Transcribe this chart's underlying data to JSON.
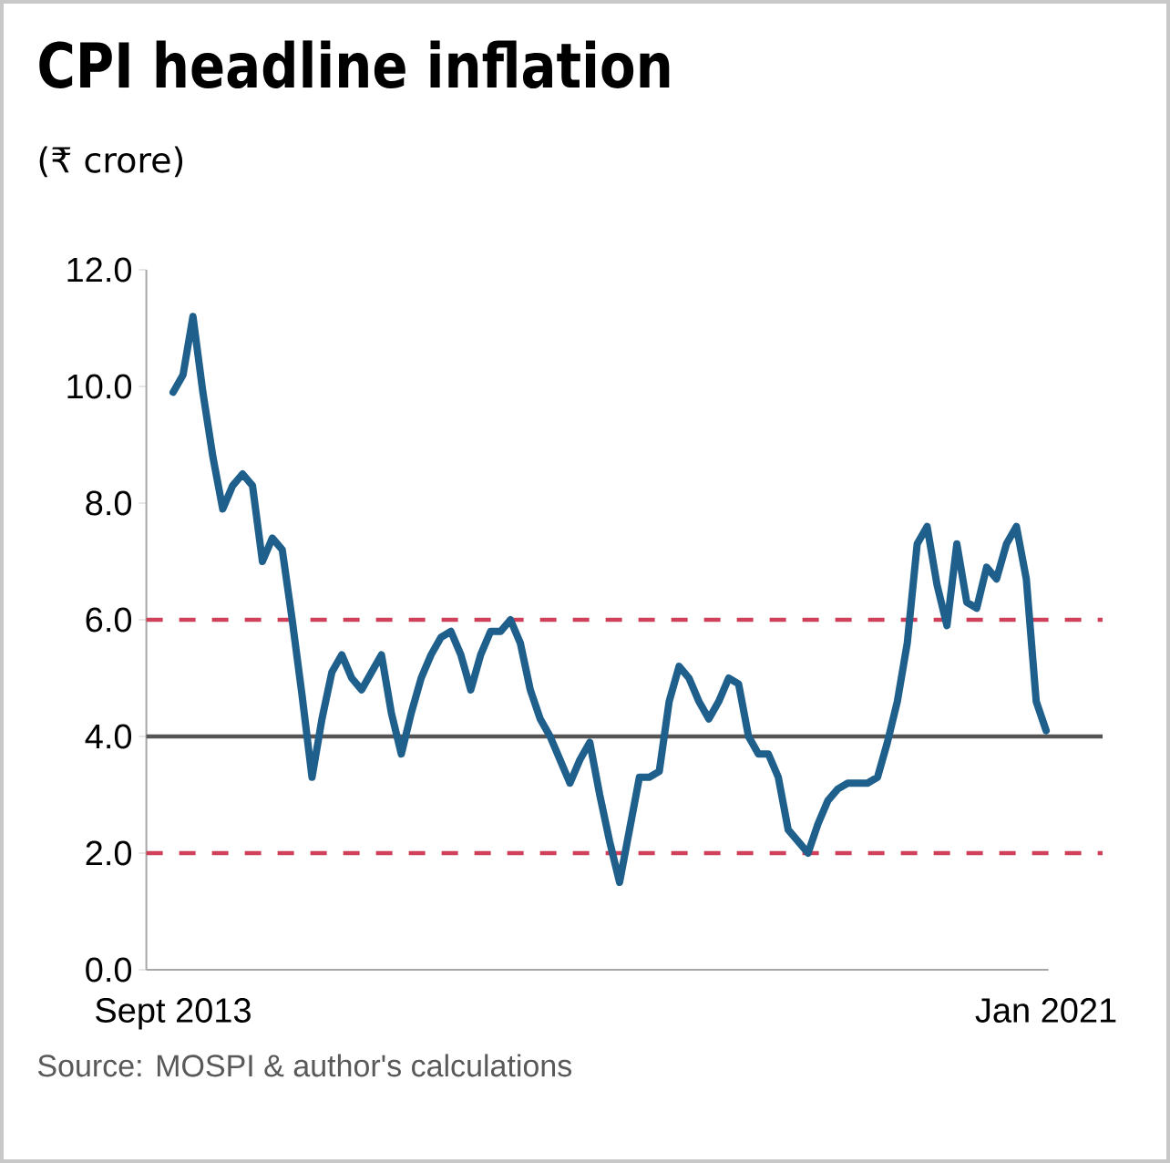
{
  "chart_data": {
    "type": "line",
    "title": "CPI headline inflation",
    "subtitle": "(₹ crore)",
    "annotations": [
      "Source: MOSPI & author's calculations"
    ],
    "x": [
      "2013-09",
      "2013-10",
      "2013-11",
      "2013-12",
      "2014-01",
      "2014-02",
      "2014-03",
      "2014-04",
      "2014-05",
      "2014-06",
      "2014-07",
      "2014-08",
      "2014-09",
      "2014-10",
      "2014-11",
      "2014-12",
      "2015-01",
      "2015-02",
      "2015-03",
      "2015-04",
      "2015-05",
      "2015-06",
      "2015-07",
      "2015-08",
      "2015-09",
      "2015-10",
      "2015-11",
      "2015-12",
      "2016-01",
      "2016-02",
      "2016-03",
      "2016-04",
      "2016-05",
      "2016-06",
      "2016-07",
      "2016-08",
      "2016-09",
      "2016-10",
      "2016-11",
      "2016-12",
      "2017-01",
      "2017-02",
      "2017-03",
      "2017-04",
      "2017-05",
      "2017-06",
      "2017-07",
      "2017-08",
      "2017-09",
      "2017-10",
      "2017-11",
      "2017-12",
      "2018-01",
      "2018-02",
      "2018-03",
      "2018-04",
      "2018-05",
      "2018-06",
      "2018-07",
      "2018-08",
      "2018-09",
      "2018-10",
      "2018-11",
      "2018-12",
      "2019-01",
      "2019-02",
      "2019-03",
      "2019-04",
      "2019-05",
      "2019-06",
      "2019-07",
      "2019-08",
      "2019-09",
      "2019-10",
      "2019-11",
      "2019-12",
      "2020-01",
      "2020-02",
      "2020-03",
      "2020-04",
      "2020-05",
      "2020-06",
      "2020-07",
      "2020-08",
      "2020-09",
      "2020-10",
      "2020-11",
      "2020-12",
      "2021-01"
    ],
    "series": [
      {
        "color": "#1f5f8b",
        "values": [
          9.9,
          10.2,
          11.2,
          9.9,
          8.8,
          7.9,
          8.3,
          8.5,
          8.3,
          7.0,
          7.4,
          7.2,
          6.0,
          4.7,
          3.3,
          4.3,
          5.1,
          5.4,
          5.0,
          4.8,
          5.1,
          5.4,
          4.4,
          3.7,
          4.4,
          5.0,
          5.4,
          5.7,
          5.8,
          5.4,
          4.8,
          5.4,
          5.8,
          5.8,
          6.0,
          5.6,
          4.8,
          4.3,
          4.0,
          3.6,
          3.2,
          3.6,
          3.9,
          3.0,
          2.2,
          1.5,
          2.4,
          3.3,
          3.3,
          3.4,
          4.6,
          5.2,
          5.0,
          4.6,
          4.3,
          4.6,
          5.0,
          4.9,
          4.0,
          3.7,
          3.7,
          3.3,
          2.4,
          2.2,
          2.0,
          2.5,
          2.9,
          3.1,
          3.2,
          3.2,
          3.2,
          3.3,
          3.9,
          4.6,
          5.6,
          7.3,
          7.6,
          6.6,
          5.9,
          7.3,
          6.3,
          6.2,
          6.9,
          6.7,
          7.3,
          7.6,
          6.7,
          4.6,
          4.1
        ]
      }
    ],
    "xlim": [
      "2013-06-10",
      "2021-01-08"
    ],
    "xticks": [
      {
        "value": "2013-09",
        "label": "Sept 2013"
      },
      {
        "value": "2021-01",
        "label": "Jan 2021"
      }
    ],
    "ylim": [
      0,
      12
    ],
    "yticks": [
      {
        "value": 0,
        "label": "0.0"
      },
      {
        "value": 2,
        "label": "2.0"
      },
      {
        "value": 4,
        "label": "4.0"
      },
      {
        "value": 6,
        "label": "6.0"
      },
      {
        "value": 8,
        "label": "8.0"
      },
      {
        "value": 10,
        "label": "10.0"
      },
      {
        "value": 12,
        "label": "12.0"
      }
    ],
    "ref_lines": [
      {
        "axis": "y",
        "value": 4,
        "color": "#555555",
        "line_style": "solid"
      },
      {
        "axis": "y",
        "value": 6,
        "color": "#d0405a",
        "line_style": "dashed"
      },
      {
        "axis": "y",
        "value": 2,
        "color": "#d0405a",
        "line_style": "dashed"
      }
    ],
    "line_style": "solid"
  }
}
